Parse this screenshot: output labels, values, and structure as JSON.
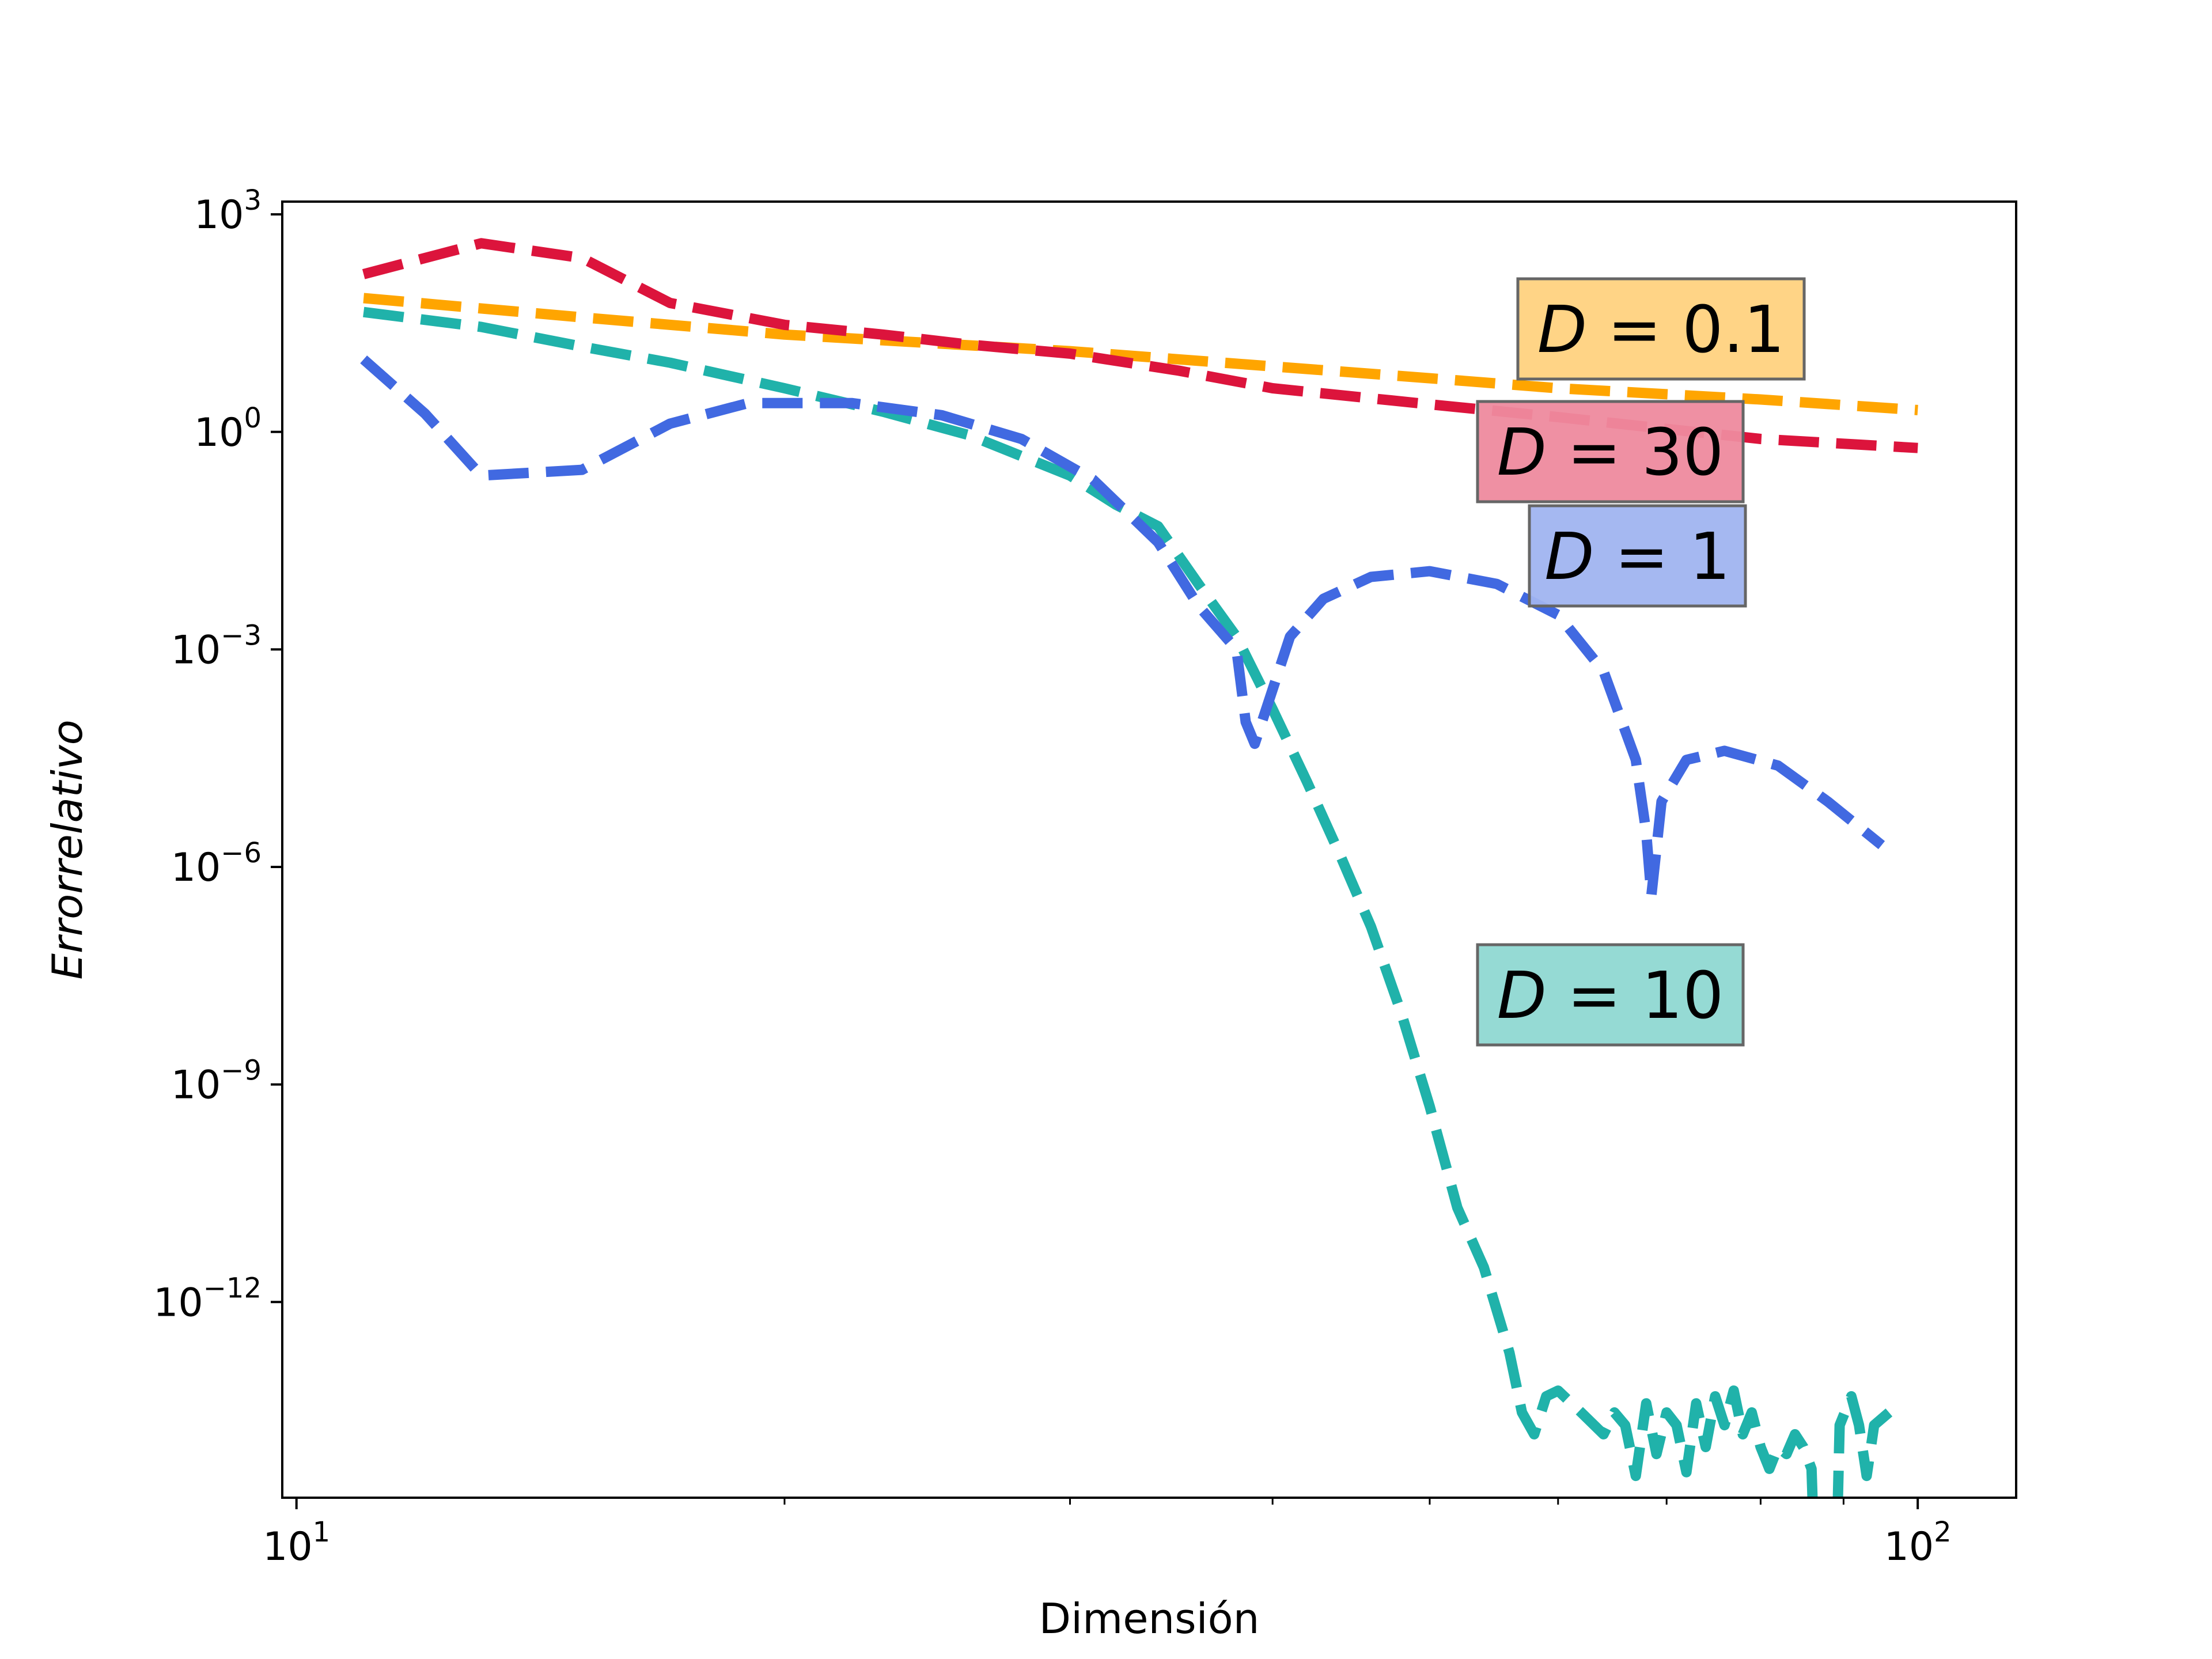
{
  "chart_data": {
    "type": "line",
    "title": "",
    "xlabel": "Dimensión",
    "ylabel": "Errorrelativo",
    "xscale": "log",
    "yscale": "log",
    "xlim": [
      9.8,
      115
    ],
    "ylim": [
      2e-15,
      1500
    ],
    "grid": false,
    "x_ticks": [
      {
        "value": 10,
        "base": "10",
        "exp": "1"
      },
      {
        "value": 100,
        "base": "10",
        "exp": "2"
      }
    ],
    "y_ticks": [
      {
        "value": 1000,
        "base": "10",
        "exp": "3"
      },
      {
        "value": 1,
        "base": "10",
        "exp": "0"
      },
      {
        "value": 0.001,
        "base": "10",
        "exp": "−3"
      },
      {
        "value": 1e-06,
        "base": "10",
        "exp": "−6"
      },
      {
        "value": 1e-09,
        "base": "10",
        "exp": "−9"
      },
      {
        "value": 1e-12,
        "base": "10",
        "exp": "−12"
      }
    ],
    "series": [
      {
        "label": "D = 0.1",
        "label_text": "$D = 0.1$",
        "color": "#FFA500",
        "label_box_color": "#FFD27F",
        "points": [
          [
            11,
            70
          ],
          [
            15,
            38
          ],
          [
            20,
            22
          ],
          [
            30,
            13
          ],
          [
            40,
            8
          ],
          [
            50,
            5.5
          ],
          [
            60,
            4
          ],
          [
            80,
            2.8
          ],
          [
            100,
            2
          ]
        ]
      },
      {
        "label": "D = 30",
        "label_text": "$D = 30$",
        "color": "#DC143C",
        "label_box_color": "#EE8A9E",
        "points": [
          [
            11,
            150
          ],
          [
            13,
            400
          ],
          [
            15,
            250
          ],
          [
            17,
            60
          ],
          [
            20,
            30
          ],
          [
            23,
            22
          ],
          [
            26,
            16
          ],
          [
            30,
            12
          ],
          [
            35,
            7
          ],
          [
            40,
            4
          ],
          [
            50,
            2.4
          ],
          [
            60,
            1.6
          ],
          [
            70,
            1.1
          ],
          [
            80,
            0.8
          ],
          [
            100,
            0.6
          ]
        ]
      },
      {
        "label": "D = 10",
        "label_text": "$D = 10$",
        "color": "#20B2AA",
        "label_box_color": "#8FD8D2",
        "points": [
          [
            11,
            45
          ],
          [
            13,
            28
          ],
          [
            15,
            15
          ],
          [
            17,
            9
          ],
          [
            20,
            4
          ],
          [
            23,
            1.9
          ],
          [
            26,
            0.9
          ],
          [
            30,
            0.25
          ],
          [
            32,
            0.1
          ],
          [
            34,
            0.05
          ],
          [
            36,
            0.008
          ],
          [
            38,
            0.0015
          ],
          [
            40,
            0.00015
          ],
          [
            42,
            1.5e-05
          ],
          [
            44,
            1.5e-06
          ],
          [
            46,
            1.5e-07
          ],
          [
            48,
            1e-08
          ],
          [
            50,
            5e-10
          ],
          [
            52,
            2e-11
          ],
          [
            54,
            3e-12
          ],
          [
            56,
            2e-13
          ],
          [
            57,
            3e-14
          ],
          [
            58,
            1.5e-14
          ],
          [
            59,
            5e-14
          ],
          [
            60,
            6e-14
          ],
          [
            62,
            3e-14
          ],
          [
            64,
            1.5e-14
          ],
          [
            65,
            3e-14
          ],
          [
            66,
            2e-14
          ],
          [
            67,
            4e-15
          ],
          [
            68,
            4e-14
          ],
          [
            69,
            8e-15
          ],
          [
            70,
            3e-14
          ],
          [
            71,
            2e-14
          ],
          [
            72,
            4.5e-15
          ],
          [
            73,
            4e-14
          ],
          [
            74,
            1e-14
          ],
          [
            75,
            5e-14
          ],
          [
            76,
            2e-14
          ],
          [
            77,
            6e-14
          ],
          [
            78,
            1.5e-14
          ],
          [
            79,
            3e-14
          ],
          [
            80,
            1e-14
          ],
          [
            81,
            5e-15
          ],
          [
            82,
            1e-14
          ],
          [
            83,
            8e-15
          ],
          [
            84,
            1.5e-14
          ],
          [
            85,
            1e-14
          ],
          [
            86,
            5e-15
          ],
          [
            86.5,
            1e-16
          ],
          [
            89,
            1e-16
          ],
          [
            89.5,
            2e-14
          ],
          [
            91,
            5e-14
          ],
          [
            92,
            2e-14
          ],
          [
            93,
            4e-15
          ],
          [
            94,
            2e-14
          ],
          [
            96,
            3e-14
          ]
        ]
      },
      {
        "label": "D = 1",
        "label_text": "$D = 1$",
        "color": "#4169E1",
        "label_box_color": "#A0B4F0",
        "points": [
          [
            11,
            10
          ],
          [
            12,
            1.8
          ],
          [
            13,
            0.25
          ],
          [
            15,
            0.3
          ],
          [
            17,
            1.3
          ],
          [
            19,
            2.5
          ],
          [
            22,
            2.5
          ],
          [
            25,
            1.7
          ],
          [
            28,
            0.8
          ],
          [
            31,
            0.22
          ],
          [
            34,
            0.03
          ],
          [
            36,
            0.004
          ],
          [
            38,
            0.001
          ],
          [
            38.5,
            0.0001
          ],
          [
            39,
            5e-05
          ],
          [
            41,
            0.0015
          ],
          [
            43,
            0.005
          ],
          [
            46,
            0.01
          ],
          [
            50,
            0.012
          ],
          [
            55,
            0.008
          ],
          [
            60,
            0.003
          ],
          [
            64,
            0.0005
          ],
          [
            67,
            3e-05
          ],
          [
            68,
            3e-06
          ],
          [
            68.5,
            4e-07
          ],
          [
            69.5,
            8e-06
          ],
          [
            72,
            3e-05
          ],
          [
            76,
            4e-05
          ],
          [
            82,
            2.5e-05
          ],
          [
            88,
            8e-06
          ],
          [
            95,
            2e-06
          ]
        ]
      }
    ]
  }
}
